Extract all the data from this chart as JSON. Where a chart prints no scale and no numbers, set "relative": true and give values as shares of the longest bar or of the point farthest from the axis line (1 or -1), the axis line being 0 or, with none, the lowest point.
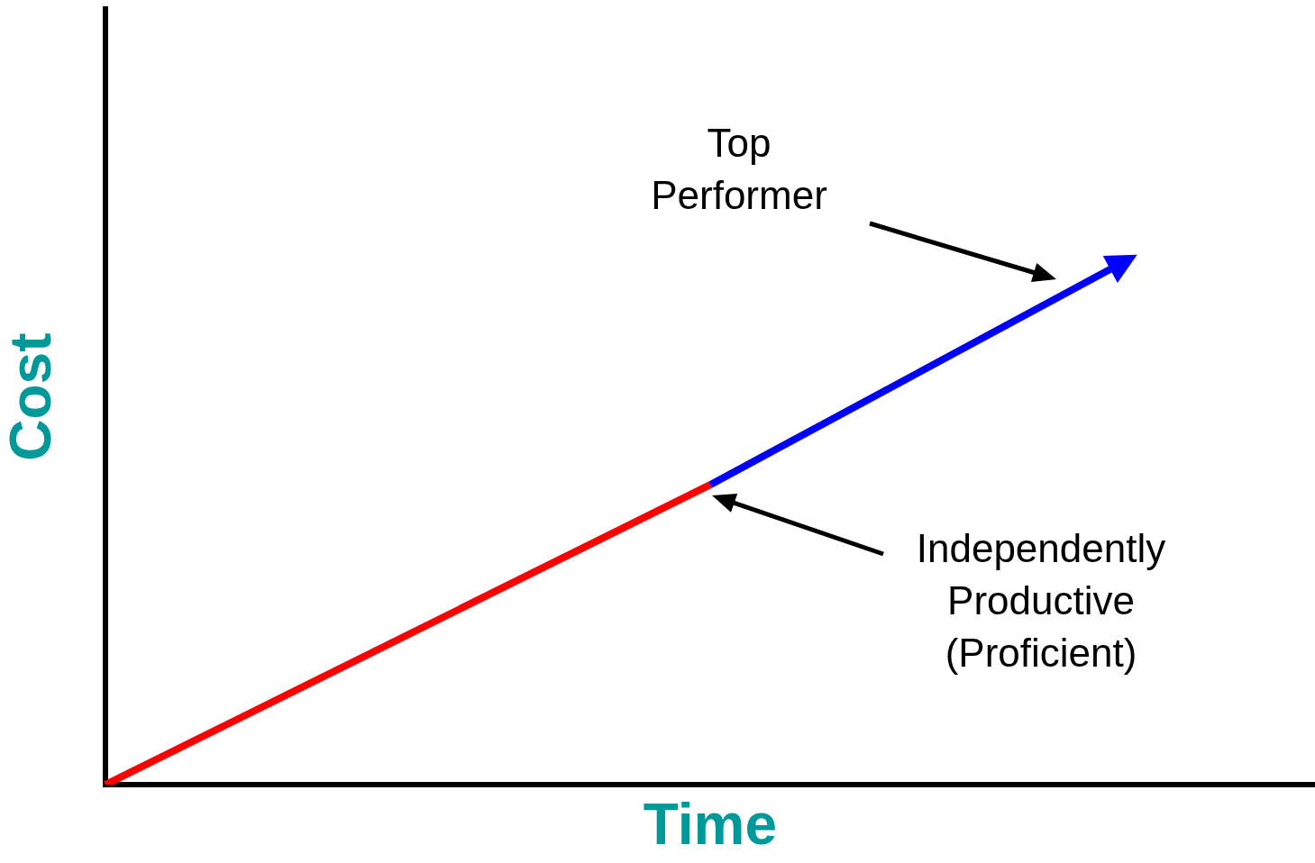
{
  "chart_data": {
    "type": "line",
    "xlabel": "Time",
    "ylabel": "Cost",
    "relative": true,
    "categories": [
      null,
      null,
      null,
      null,
      null,
      null,
      null,
      null,
      null,
      null,
      null,
      null,
      null
    ],
    "series": [
      {
        "color": "#ff0000",
        "values": [
          0,
          null,
          null,
          null,
          null,
          null,
          0.58,
          null,
          null,
          null,
          null,
          null,
          null
        ]
      },
      {
        "color": "#0000ff",
        "values": [
          null,
          null,
          null,
          null,
          null,
          null,
          0.58,
          null,
          null,
          null,
          1,
          null,
          null
        ]
      }
    ],
    "annotations": [
      "Top Performer",
      "Independently Productive (Proficient)"
    ],
    "grid": false,
    "legend": false,
    "tick_labels": false,
    "line_style": "solid"
  }
}
